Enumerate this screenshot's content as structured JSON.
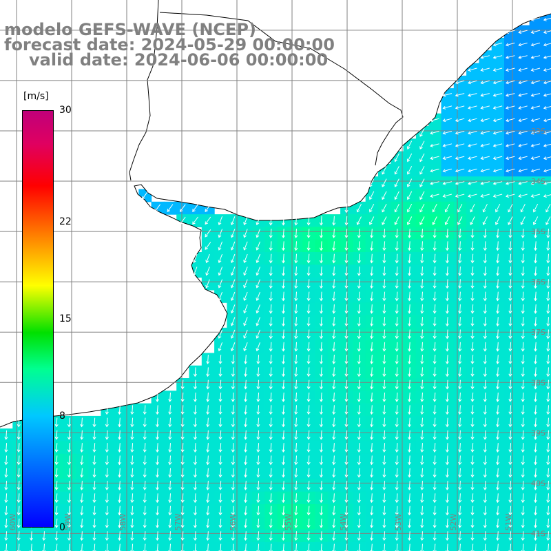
{
  "header": {
    "model_line": "modelo GEFS-WAVE (NCEP)",
    "forecast_line": "forecast date: 2024-05-29 00:00:00",
    "valid_line": "valid date: 2024-06-06 00:00:00"
  },
  "colorbar": {
    "units": "[m/s]",
    "ticks": [
      {
        "label": "30",
        "value": 30
      },
      {
        "label": "22",
        "value": 22
      },
      {
        "label": "15",
        "value": 15
      },
      {
        "label": "8",
        "value": 8
      },
      {
        "label": "0",
        "value": 0
      }
    ],
    "range": [
      0,
      30
    ],
    "colors": [
      "#0000ff",
      "#00c8ff",
      "#00ff90",
      "#00e000",
      "#ffff00",
      "#ff8000",
      "#ff0000",
      "#c0007a"
    ]
  },
  "map": {
    "land_color": "#ffffff",
    "coast_color": "#000000",
    "grid_color": "#808080",
    "arrow_color": "#ffffff",
    "lon_labels": [
      "60W",
      "59W",
      "58W",
      "57W",
      "56W",
      "55W",
      "54W",
      "53W",
      "52W",
      "51W"
    ],
    "lat_labels": [
      "33S",
      "34S",
      "35S",
      "36S",
      "37S",
      "38S",
      "39S",
      "40S",
      "41S"
    ],
    "lon_range": [
      -60.3,
      -50.3
    ],
    "lat_range": [
      -41.35,
      -30.4
    ],
    "wind_field_note_free": true
  }
}
